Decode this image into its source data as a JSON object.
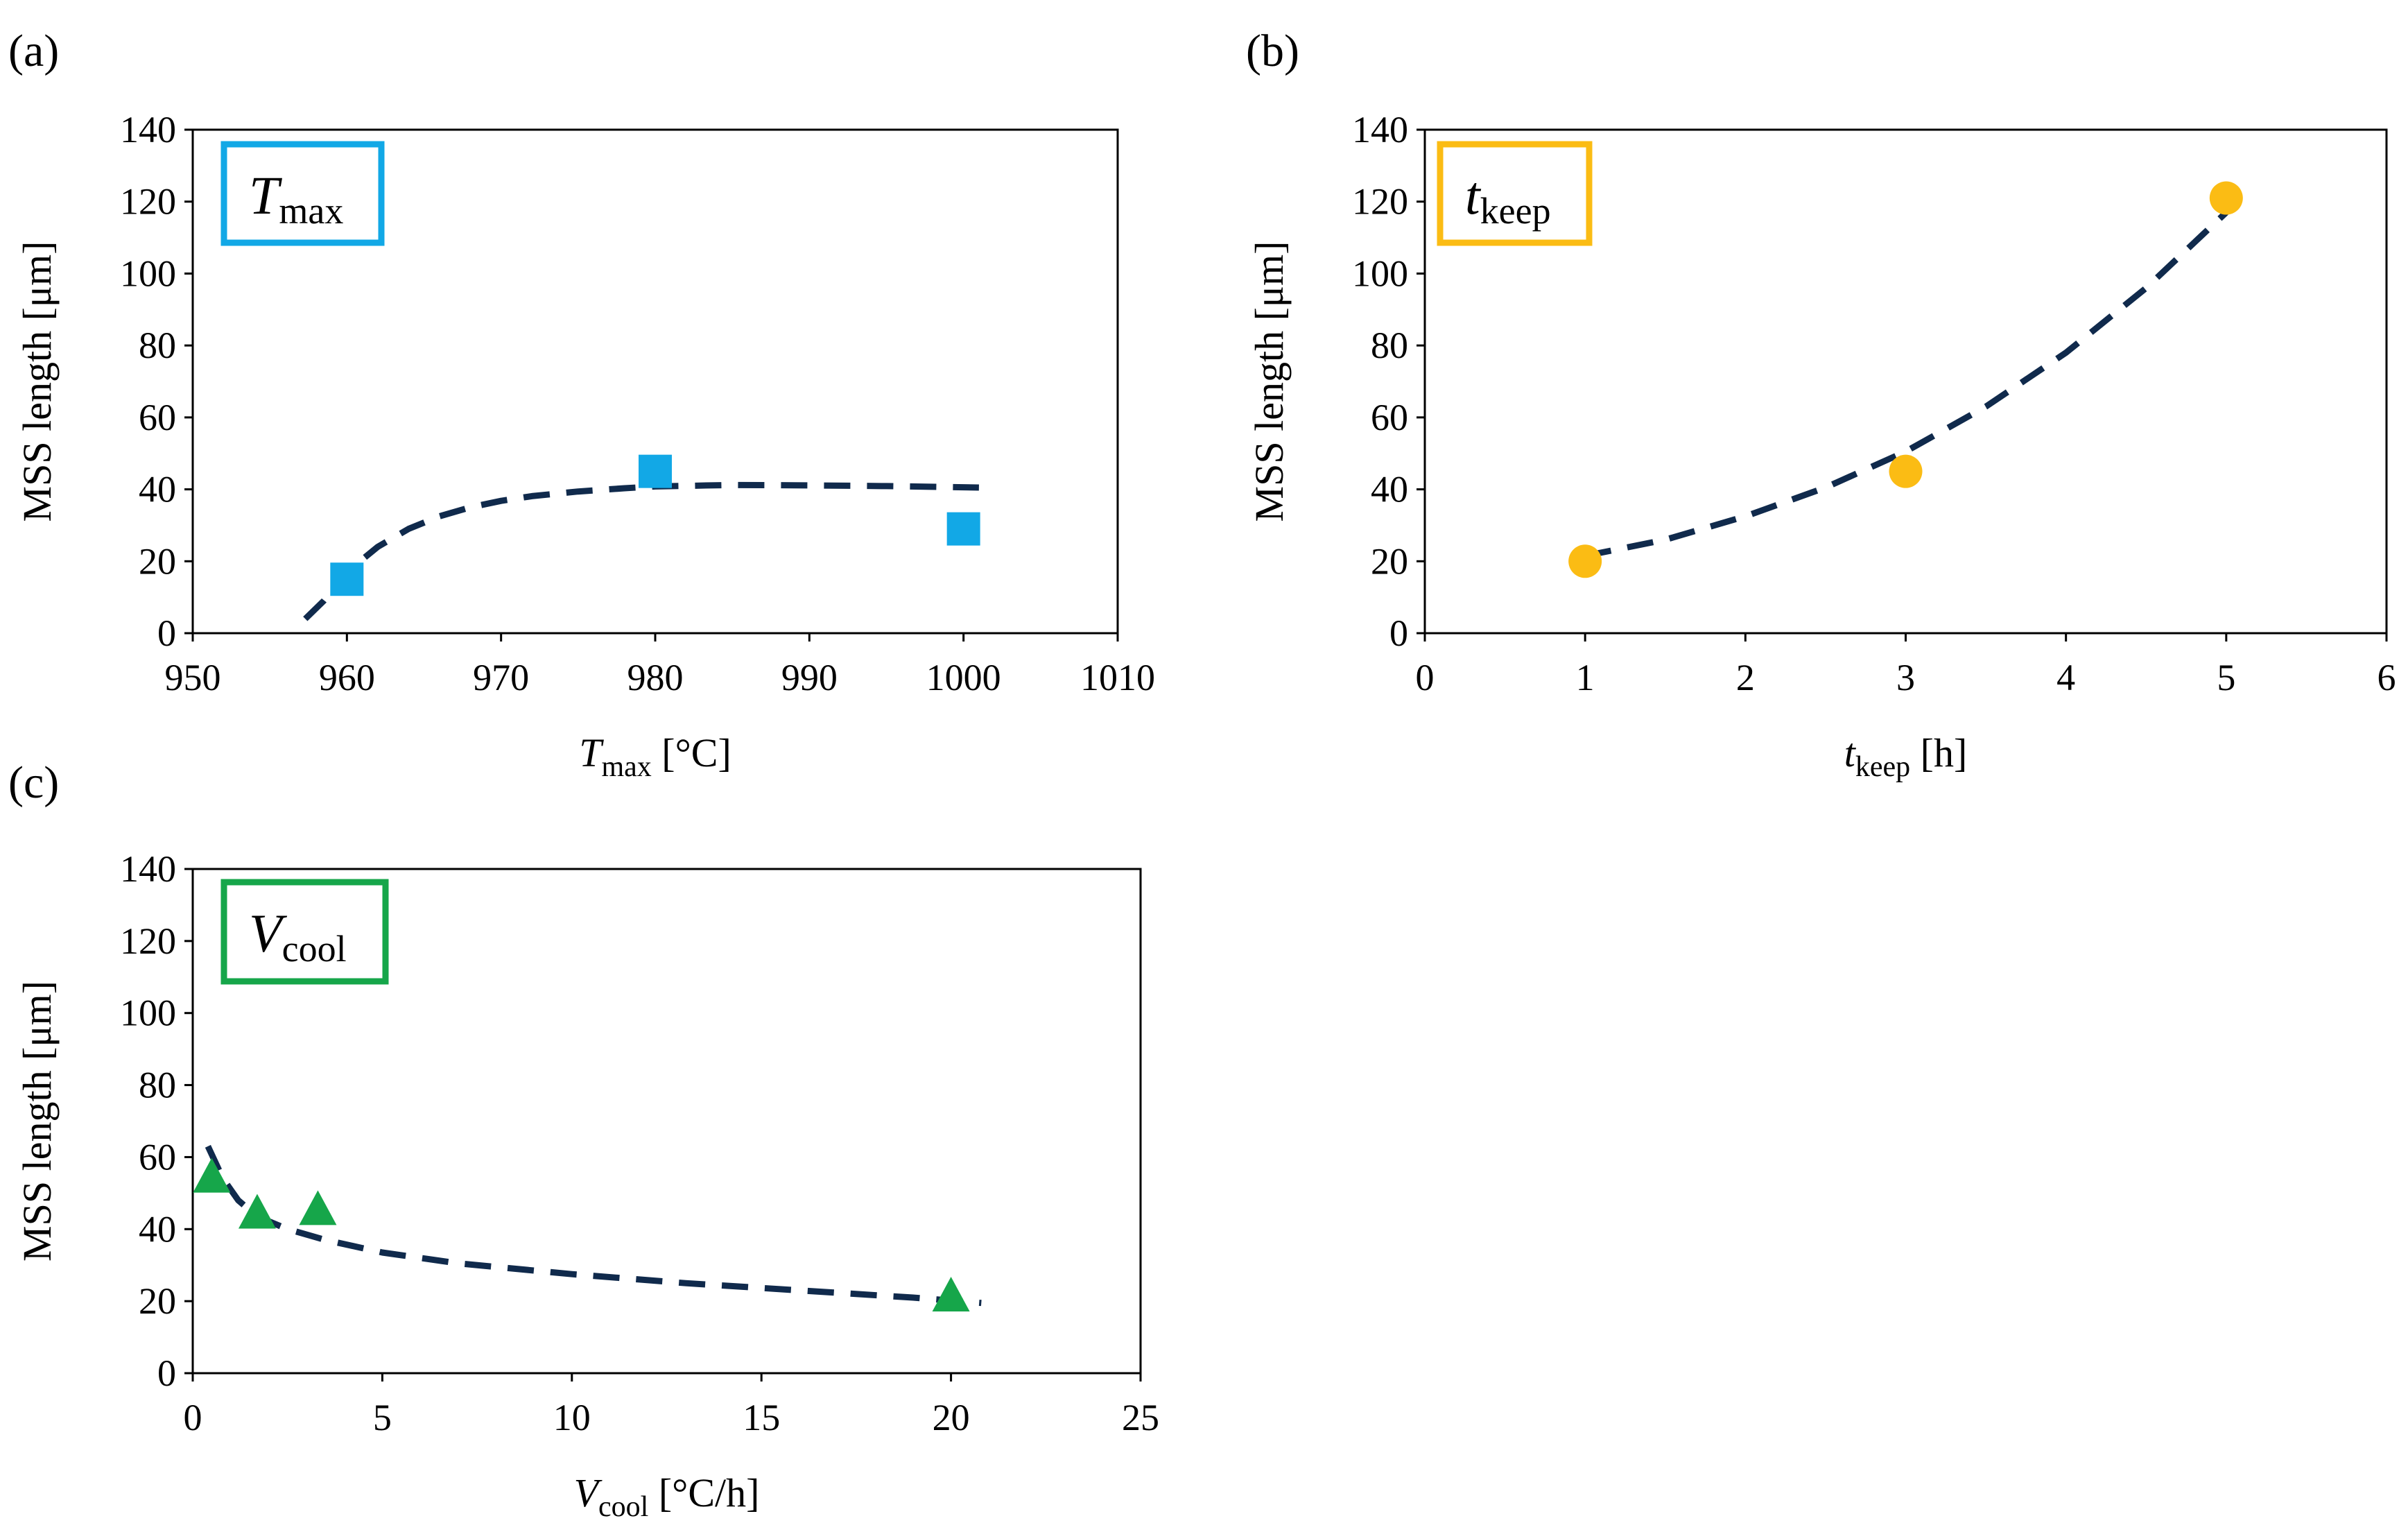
{
  "colors": {
    "tmax": "#12a8e6",
    "tkeep": "#fbbc14",
    "vcool": "#16a64a",
    "fit": "#102a4c",
    "axis": "#000000"
  },
  "chart_data": [
    {
      "panel_label": "(a)",
      "type": "scatter",
      "marker": "square",
      "color_key": "tmax",
      "inset": {
        "main": "T",
        "sub": "max"
      },
      "xlabel": {
        "main": "T",
        "sub": "max",
        "unit": " [°C]"
      },
      "ylabel": "MSS length [μm]",
      "xlim": [
        950,
        1010
      ],
      "ylim": [
        0,
        140
      ],
      "xticks": [
        "950",
        "960",
        "970",
        "980",
        "990",
        "1000",
        "1010"
      ],
      "yticks": [
        "0",
        "20",
        "40",
        "60",
        "80",
        "100",
        "120",
        "140"
      ],
      "x": [
        960,
        980,
        1000
      ],
      "y": [
        15,
        45,
        29
      ],
      "fit_line": {
        "style": "dashed",
        "x": [
          957.3,
          958.5,
          960,
          962,
          964,
          966,
          968,
          970,
          972,
          975,
          978,
          980,
          985,
          990,
          995,
          1001
        ],
        "y": [
          4,
          9,
          17,
          24,
          29,
          32.5,
          35,
          36.8,
          38.1,
          39.4,
          40.3,
          40.8,
          41.2,
          41.1,
          40.9,
          40.5
        ]
      }
    },
    {
      "panel_label": "(b)",
      "type": "scatter",
      "marker": "circle",
      "color_key": "tkeep",
      "inset": {
        "main": "t",
        "sub": "keep"
      },
      "xlabel": {
        "main": "t",
        "sub": "keep",
        "unit": " [h]"
      },
      "ylabel": "MSS length [μm]",
      "xlim": [
        0,
        6
      ],
      "ylim": [
        0,
        140
      ],
      "xticks": [
        "0",
        "1",
        "2",
        "3",
        "4",
        "5",
        "6"
      ],
      "yticks": [
        "0",
        "20",
        "40",
        "60",
        "80",
        "100",
        "120",
        "140"
      ],
      "x": [
        1,
        3,
        5
      ],
      "y": [
        20,
        45,
        121
      ],
      "fit_line": {
        "style": "dashed",
        "x": [
          1,
          1.5,
          2,
          2.5,
          3,
          3.5,
          4,
          4.5,
          5
        ],
        "y": [
          21.5,
          26,
          32.5,
          40.5,
          50.5,
          63,
          78,
          96,
          117
        ]
      }
    },
    {
      "panel_label": "(c)",
      "type": "scatter",
      "marker": "triangle",
      "color_key": "vcool",
      "inset": {
        "main": "V",
        "sub": "cool"
      },
      "xlabel": {
        "main": "V",
        "sub": "cool",
        "unit": " [°C/h]"
      },
      "ylabel": "MSS length [μm]",
      "xlim": [
        0,
        25
      ],
      "ylim": [
        0,
        140
      ],
      "xticks": [
        "0",
        "5",
        "10",
        "15",
        "20",
        "25"
      ],
      "yticks": [
        "0",
        "20",
        "40",
        "60",
        "80",
        "100",
        "120",
        "140"
      ],
      "x": [
        0.5,
        1.7,
        3.3,
        20
      ],
      "y": [
        54,
        44,
        45,
        21
      ],
      "fit_line": {
        "style": "dashed",
        "x": [
          0.4,
          0.8,
          1.2,
          1.7,
          2.5,
          3.5,
          5,
          7,
          10,
          13,
          16,
          19,
          20.8
        ],
        "y": [
          63,
          54,
          48,
          43.5,
          40,
          37,
          33.5,
          30.5,
          27.5,
          25,
          23,
          21,
          19.5
        ]
      }
    }
  ]
}
